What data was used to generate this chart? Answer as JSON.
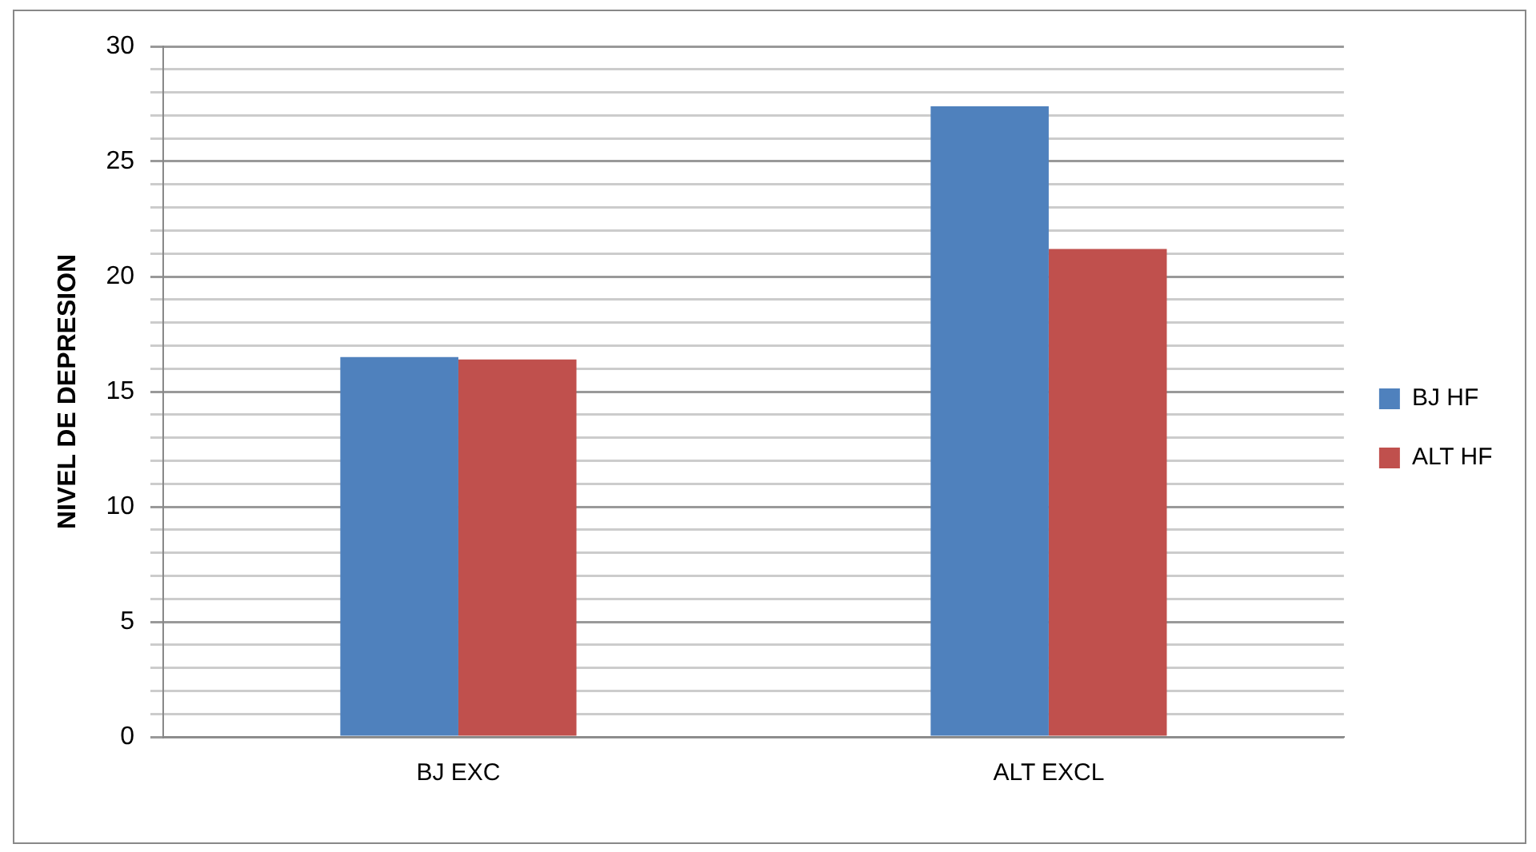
{
  "chart_data": {
    "type": "bar",
    "ylabel": "NIVEL DE DEPRESION",
    "categories": [
      "BJ EXC",
      "ALT EXCL"
    ],
    "series": [
      {
        "name": "BJ HF",
        "color": "#4f81bd",
        "values": [
          16.5,
          27.4
        ]
      },
      {
        "name": "ALT HF",
        "color": "#c0504d",
        "values": [
          16.4,
          21.2
        ]
      }
    ],
    "ylim": [
      0,
      30
    ],
    "yticks": [
      0,
      {
        "value": 1,
        "label": null
      },
      {
        "value": 2,
        "label": null
      },
      {
        "value": 3,
        "label": null
      },
      {
        "value": 4,
        "label": null
      },
      5,
      {
        "value": 6,
        "label": null
      },
      {
        "value": 7,
        "label": null
      },
      {
        "value": 8,
        "label": null
      },
      {
        "value": 9,
        "label": null
      },
      10,
      {
        "value": 11,
        "label": null
      },
      {
        "value": 12,
        "label": null
      },
      {
        "value": 13,
        "label": null
      },
      {
        "value": 14,
        "label": null
      },
      15,
      {
        "value": 16,
        "label": null
      },
      {
        "value": 17,
        "label": null
      },
      {
        "value": 18,
        "label": null
      },
      {
        "value": 19,
        "label": null
      },
      20,
      {
        "value": 21,
        "label": null
      },
      {
        "value": 22,
        "label": null
      },
      {
        "value": 23,
        "label": null
      },
      {
        "value": 24,
        "label": null
      },
      25,
      {
        "value": 26,
        "label": null
      },
      {
        "value": 27,
        "label": null
      },
      {
        "value": 28,
        "label": null
      },
      {
        "value": 29,
        "label": null
      },
      30
    ],
    "grid": "y",
    "legend": "right"
  }
}
